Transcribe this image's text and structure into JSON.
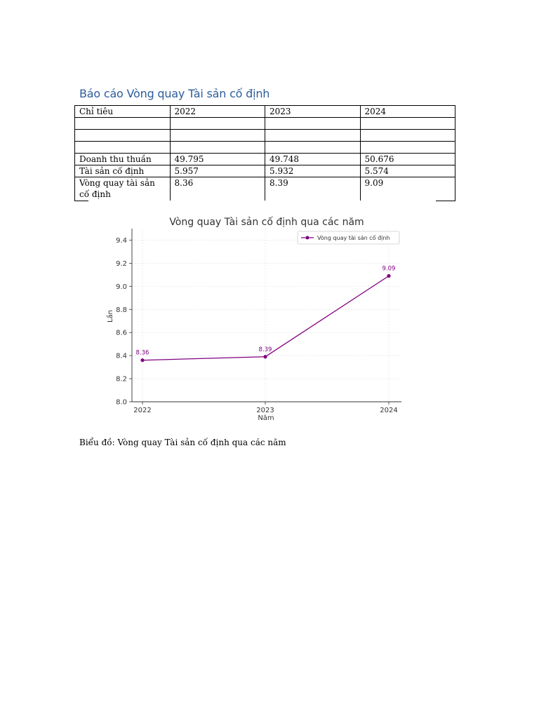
{
  "document": {
    "title": "Báo cáo Vòng quay Tài sản cố định",
    "caption": "Biểu đồ: Vòng quay Tài sản cố định qua các năm"
  },
  "table": {
    "headers": [
      "Chỉ tiêu",
      "2022",
      "2023",
      "2024"
    ],
    "rows": [
      [
        "Doanh thu thuần",
        "49.795",
        "49.748",
        "50.676"
      ],
      [
        "Tài sản cố định",
        "5.957",
        "5.932",
        "5.574"
      ],
      [
        "Vòng quay tài sản cố định",
        "8.36",
        "8.39",
        "9.09"
      ]
    ]
  },
  "chart_data": {
    "type": "line",
    "title": "Vòng quay Tài sản cố định qua các năm",
    "xlabel": "Năm",
    "ylabel": "Lần",
    "x": [
      "2022",
      "2023",
      "2024"
    ],
    "series": [
      {
        "name": "Vòng quay tài sản cố định",
        "values": [
          8.36,
          8.39,
          9.09
        ],
        "color": "#800080"
      }
    ],
    "data_labels": [
      "8.36",
      "8.39",
      "9.09"
    ],
    "ylim": [
      8.0,
      9.5
    ],
    "yticks": [
      "8.0",
      "8.2",
      "8.4",
      "8.6",
      "8.8",
      "9.0",
      "9.2",
      "9.4"
    ],
    "yticks_values": [
      8.0,
      8.2,
      8.4,
      8.6,
      8.8,
      9.0,
      9.2,
      9.4
    ],
    "grid": true,
    "legend": "top-right"
  }
}
